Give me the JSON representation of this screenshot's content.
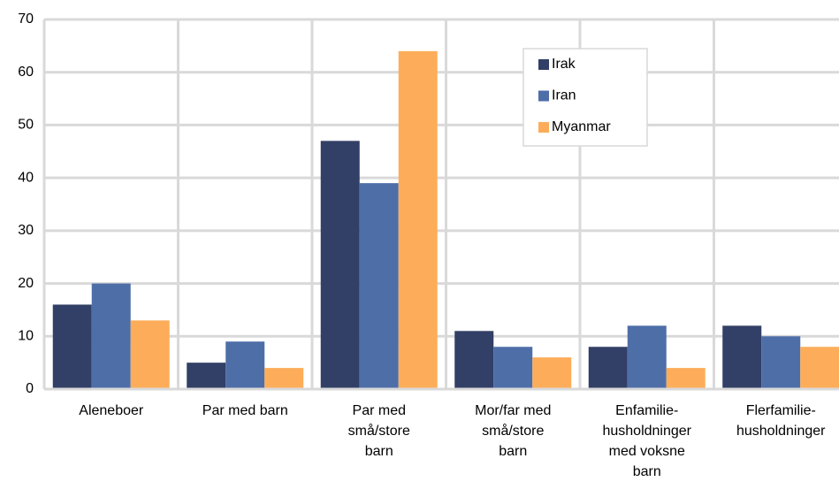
{
  "chart_data": {
    "type": "bar",
    "categories": [
      "Aleneboer",
      "Par med barn",
      "Par med\nsmå/store\nbarn",
      "Mor/far med\nsmå/store\nbarn",
      "Enfamilie-\nhusholdninger\nmed voksne\nbarn",
      "Flerfamilie-\nhusholdninger"
    ],
    "series": [
      {
        "name": "Irak",
        "color": "#323f66",
        "values": [
          16,
          5,
          47,
          11,
          8,
          12
        ]
      },
      {
        "name": "Iran",
        "color": "#4e6ea8",
        "values": [
          20,
          9,
          39,
          8,
          12,
          10
        ]
      },
      {
        "name": "Myanmar",
        "color": "#fdad5a",
        "values": [
          13,
          4,
          64,
          6,
          4,
          8
        ]
      }
    ],
    "ylim": [
      0,
      70
    ],
    "yticks": [
      0,
      10,
      20,
      30,
      40,
      50,
      60,
      70
    ],
    "grid": true
  }
}
